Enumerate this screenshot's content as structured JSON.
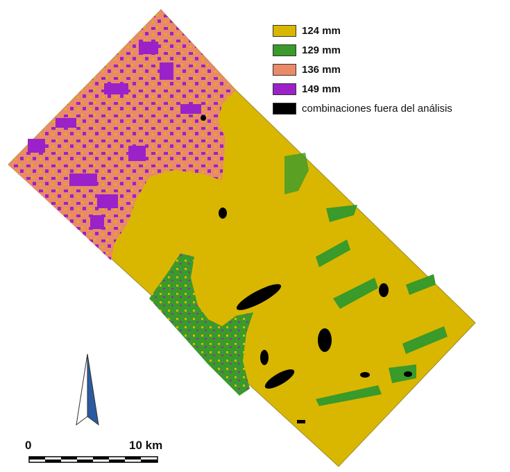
{
  "legend": {
    "items": [
      {
        "label": "124 mm",
        "color": "#d9b700"
      },
      {
        "label": "129 mm",
        "color": "#3a9a2a"
      },
      {
        "label": "136 mm",
        "color": "#ea8a68"
      },
      {
        "label": "149 mm",
        "color": "#9a22c8"
      },
      {
        "label": "combinaciones fuera del análisis",
        "color": "#000000"
      }
    ]
  },
  "scale_bar": {
    "start_label": "0",
    "end_label": "10 km"
  },
  "north_arrow": {
    "icon": "north-arrow-icon"
  }
}
